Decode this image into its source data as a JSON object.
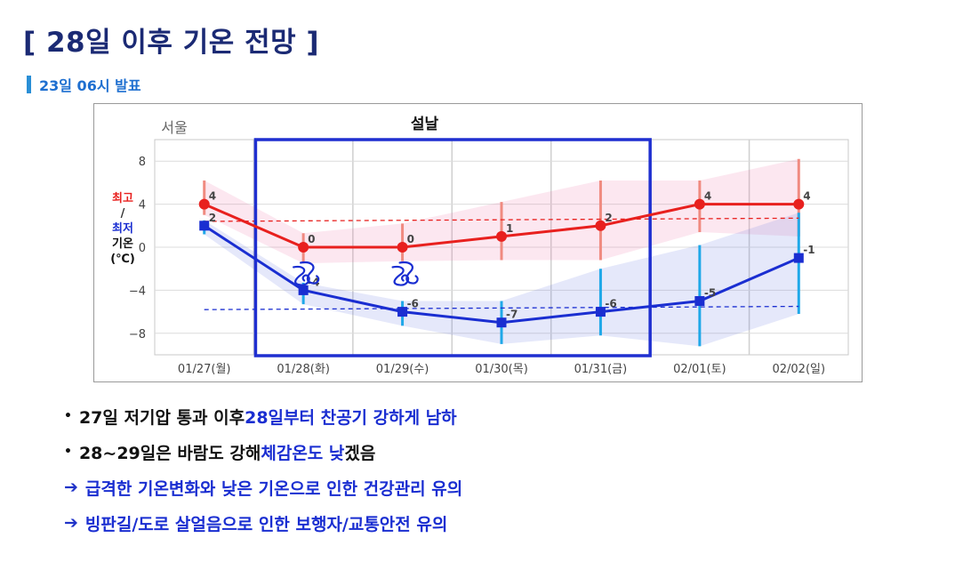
{
  "title": "[ 28일 이후 기온 전망 ]",
  "subtitle": "23일 06시 발표",
  "chart_data": {
    "type": "line",
    "title": "서울",
    "highlight_label": "설날",
    "ylabel_lines": [
      "최고",
      "/",
      "최저",
      "기온",
      "(℃)"
    ],
    "ylim": [
      -10,
      10
    ],
    "yticks": [
      8,
      4,
      0,
      -4,
      -8
    ],
    "categories": [
      "01/27(월)",
      "01/28(화)",
      "01/29(수)",
      "01/30(목)",
      "01/31(금)",
      "02/01(토)",
      "02/02(일)"
    ],
    "series": [
      {
        "name": "최고",
        "color": "#e8201e",
        "values": [
          4,
          0,
          0,
          1,
          2,
          4,
          4
        ],
        "range_low": [
          3,
          -1.5,
          -1.3,
          -1.2,
          -1.2,
          1.4,
          1
        ],
        "range_high": [
          6.2,
          1.3,
          2.2,
          4.2,
          6.2,
          6.2,
          8.2
        ]
      },
      {
        "name": "최저",
        "color": "#1a2ed1",
        "values": [
          2,
          -4,
          -6,
          -7,
          -6,
          -5,
          -1
        ],
        "range_low": [
          1.2,
          -5.3,
          -7.3,
          -9,
          -8.2,
          -9.2,
          -6.2
        ],
        "range_high": [
          2.5,
          -3.3,
          -5,
          -5,
          -2,
          0.2,
          3.2
        ]
      }
    ],
    "normal_max": [
      2.4,
      2.7
    ],
    "normal_min": [
      -5.8,
      -5.5
    ],
    "grid": true,
    "legend": "none"
  },
  "icons": [
    "wind-icon",
    "wind-icon"
  ],
  "bullets": [
    {
      "marker": "•",
      "parts": [
        {
          "text": "27일 저기압 통과 이후 ",
          "color": "#111111"
        },
        {
          "text": "28일부터 찬공기 강하게 남하",
          "color": "#1a2ed1"
        }
      ]
    },
    {
      "marker": "•",
      "parts": [
        {
          "text": "28~29일은 바람도 강해 ",
          "color": "#111111"
        },
        {
          "text": "체감온도 낮",
          "color": "#1a2ed1"
        },
        {
          "text": "겠음",
          "color": "#111111"
        }
      ]
    },
    {
      "marker": "➔",
      "parts": [
        {
          "text": "급격한 기온변화와 낮은 기온으로 인한 건강관리 유의",
          "color": "#1a2ed1"
        }
      ]
    },
    {
      "marker": "➔",
      "parts": [
        {
          "text": "빙판길/도로 살얼음으로 인한 보행자/교통안전 유의",
          "color": "#1a2ed1"
        }
      ]
    }
  ]
}
